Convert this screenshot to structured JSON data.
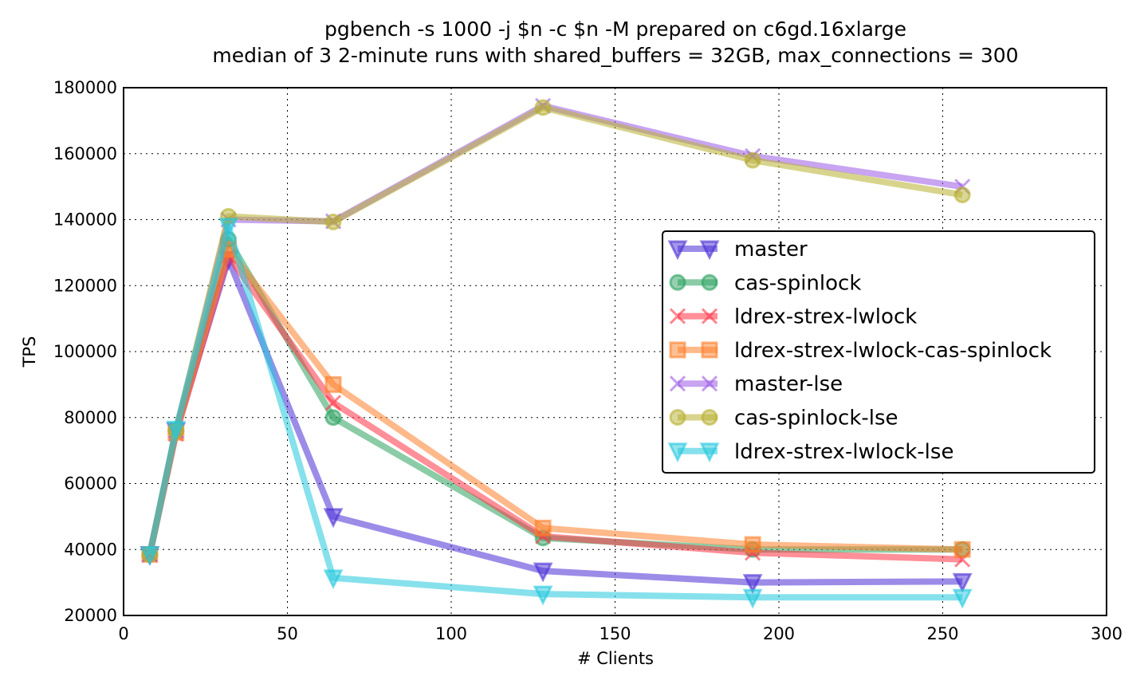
{
  "chart_data": {
    "type": "line",
    "title": "pgbench -s 1000 -j $n -c $n -M prepared on c6gd.16xlarge",
    "subtitle": "median of 3 2-minute runs with shared_buffers = 32GB, max_connections = 300",
    "xlabel": "# Clients",
    "ylabel": "TPS",
    "xlim": [
      0,
      300
    ],
    "ylim": [
      20000,
      180000
    ],
    "xticks": [
      "0",
      "50",
      "100",
      "150",
      "200",
      "250",
      "300"
    ],
    "yticks": [
      "20000",
      "40000",
      "60000",
      "80000",
      "100000",
      "120000",
      "140000",
      "160000",
      "180000"
    ],
    "grid": true,
    "legend_position": "center-right",
    "x": [
      8,
      16,
      32,
      64,
      128,
      192,
      256
    ],
    "series": [
      {
        "name": "master",
        "marker": "triangle-down",
        "color": "#4a2ed6",
        "values": [
          38500,
          76000,
          128000,
          50000,
          33500,
          30000,
          30300
        ]
      },
      {
        "name": "cas-spinlock",
        "marker": "circle",
        "color": "#2ca25f",
        "values": [
          38500,
          76000,
          134000,
          80000,
          43500,
          40000,
          40000
        ]
      },
      {
        "name": "ldrex-strex-lwlock",
        "marker": "x",
        "color": "#ff3344",
        "values": [
          38500,
          75000,
          129000,
          84500,
          44000,
          39000,
          37000
        ]
      },
      {
        "name": "ldrex-strex-lwlock-cas-spinlock",
        "marker": "square",
        "color": "#ff7f2a",
        "values": [
          38500,
          75500,
          131000,
          90000,
          46500,
          41500,
          40000
        ]
      },
      {
        "name": "master-lse",
        "marker": "x",
        "color": "#9b59e6",
        "values": [
          38500,
          76000,
          140000,
          139500,
          174500,
          159300,
          150000
        ]
      },
      {
        "name": "cas-spinlock-lse",
        "marker": "circle",
        "color": "#b8b030",
        "values": [
          38500,
          76000,
          141000,
          139300,
          174000,
          158000,
          147500
        ]
      },
      {
        "name": "ldrex-strex-lwlock-lse",
        "marker": "triangle-down",
        "color": "#22c8dd",
        "values": [
          38500,
          76500,
          138000,
          31400,
          26500,
          25500,
          25500
        ]
      }
    ]
  }
}
